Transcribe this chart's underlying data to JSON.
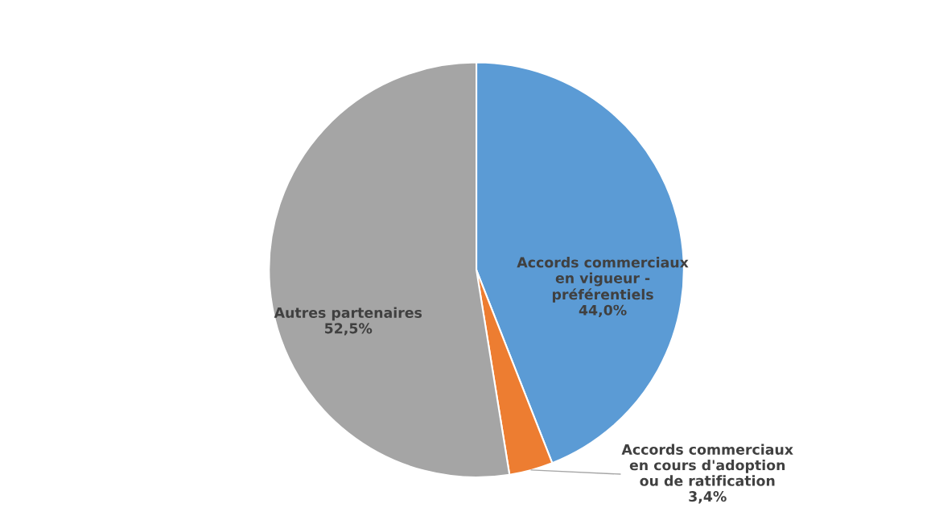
{
  "chart_data": {
    "type": "pie",
    "categories": [
      "Accords commerciaux en vigueur - préférentiels",
      "Accords commerciaux en cours d'adoption ou de ratification",
      "Autres partenaires"
    ],
    "values": [
      44.0,
      3.4,
      52.5
    ],
    "value_labels": [
      "44,0%",
      "3,4%",
      "52,5%"
    ],
    "colors": [
      "#5b9bd5",
      "#ed7d31",
      "#a5a5a5"
    ],
    "legend": false
  }
}
